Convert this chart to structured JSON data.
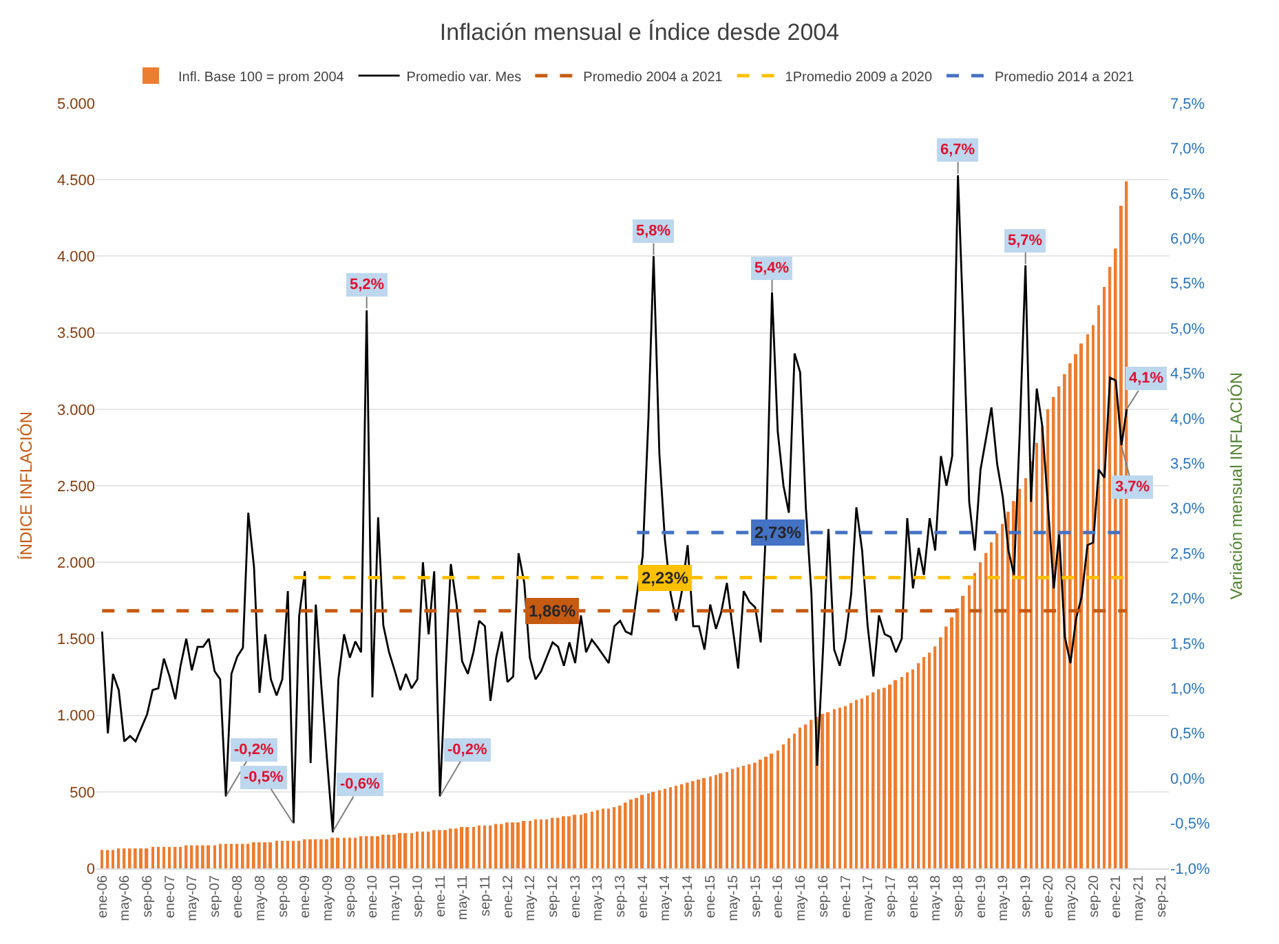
{
  "chart_data": {
    "type": "bar",
    "title": "Inflación mensual e Índice desde 2004",
    "ylabel": "ÍNDICE INFLACIÓN",
    "y2label": "Variación mensual INFLACIÓN",
    "x": [
      "2006-01",
      "2006-02",
      "2006-03",
      "2006-04",
      "2006-05",
      "2006-06",
      "2006-07",
      "2006-08",
      "2006-09",
      "2006-10",
      "2006-11",
      "2006-12",
      "2007-01",
      "2007-02",
      "2007-03",
      "2007-04",
      "2007-05",
      "2007-06",
      "2007-07",
      "2007-08",
      "2007-09",
      "2007-10",
      "2007-11",
      "2007-12",
      "2008-01",
      "2008-02",
      "2008-03",
      "2008-04",
      "2008-05",
      "2008-06",
      "2008-07",
      "2008-08",
      "2008-09",
      "2008-10",
      "2008-11",
      "2008-12",
      "2009-01",
      "2009-02",
      "2009-03",
      "2009-04",
      "2009-05",
      "2009-06",
      "2009-07",
      "2009-08",
      "2009-09",
      "2009-10",
      "2009-11",
      "2009-12",
      "2010-01",
      "2010-02",
      "2010-03",
      "2010-04",
      "2010-05",
      "2010-06",
      "2010-07",
      "2010-08",
      "2010-09",
      "2010-10",
      "2010-11",
      "2010-12",
      "2011-01",
      "2011-02",
      "2011-03",
      "2011-04",
      "2011-05",
      "2011-06",
      "2011-07",
      "2011-08",
      "2011-09",
      "2011-10",
      "2011-11",
      "2011-12",
      "2012-01",
      "2012-02",
      "2012-03",
      "2012-04",
      "2012-05",
      "2012-06",
      "2012-07",
      "2012-08",
      "2012-09",
      "2012-10",
      "2012-11",
      "2012-12",
      "2013-01",
      "2013-02",
      "2013-03",
      "2013-04",
      "2013-05",
      "2013-06",
      "2013-07",
      "2013-08",
      "2013-09",
      "2013-10",
      "2013-11",
      "2013-12",
      "2014-01",
      "2014-02",
      "2014-03",
      "2014-04",
      "2014-05",
      "2014-06",
      "2014-07",
      "2014-08",
      "2014-09",
      "2014-10",
      "2014-11",
      "2014-12",
      "2015-01",
      "2015-02",
      "2015-03",
      "2015-04",
      "2015-05",
      "2015-06",
      "2015-07",
      "2015-08",
      "2015-09",
      "2015-10",
      "2015-11",
      "2015-12",
      "2016-01",
      "2016-02",
      "2016-03",
      "2016-04",
      "2016-05",
      "2016-06",
      "2016-07",
      "2016-08",
      "2016-09",
      "2016-10",
      "2016-11",
      "2016-12",
      "2017-01",
      "2017-02",
      "2017-03",
      "2017-04",
      "2017-05",
      "2017-06",
      "2017-07",
      "2017-08",
      "2017-09",
      "2017-10",
      "2017-11",
      "2017-12",
      "2018-01",
      "2018-02",
      "2018-03",
      "2018-04",
      "2018-05",
      "2018-06",
      "2018-07",
      "2018-08",
      "2018-09",
      "2018-10",
      "2018-11",
      "2018-12",
      "2019-01",
      "2019-02",
      "2019-03",
      "2019-04",
      "2019-05",
      "2019-06",
      "2019-07",
      "2019-08",
      "2019-09",
      "2019-10",
      "2019-11",
      "2019-12",
      "2020-01",
      "2020-02",
      "2020-03",
      "2020-04",
      "2020-05",
      "2020-06",
      "2020-07",
      "2020-08",
      "2020-09",
      "2020-10",
      "2020-11",
      "2020-12",
      "2021-01",
      "2021-02",
      "2021-03"
    ],
    "series": [
      {
        "name": "Infl. Base 100 = prom 2004",
        "color": "#ed7d31",
        "values": [
          120,
          120,
          120,
          130,
          130,
          130,
          130,
          130,
          130,
          140,
          140,
          140,
          140,
          140,
          140,
          150,
          150,
          150,
          150,
          150,
          150,
          160,
          160,
          160,
          160,
          160,
          160,
          170,
          170,
          170,
          170,
          180,
          180,
          180,
          180,
          180,
          190,
          190,
          190,
          190,
          190,
          200,
          200,
          200,
          200,
          200,
          210,
          210,
          210,
          210,
          220,
          220,
          220,
          230,
          230,
          230,
          240,
          240,
          240,
          250,
          250,
          250,
          260,
          260,
          270,
          270,
          270,
          280,
          280,
          280,
          290,
          290,
          300,
          300,
          300,
          310,
          310,
          320,
          320,
          320,
          330,
          330,
          340,
          340,
          350,
          350,
          360,
          370,
          380,
          390,
          390,
          400,
          410,
          430,
          450,
          460,
          480,
          490,
          500,
          510,
          520,
          530,
          540,
          550,
          560,
          570,
          580,
          590,
          600,
          610,
          620,
          630,
          650,
          660,
          670,
          680,
          690,
          710,
          730,
          750,
          770,
          810,
          850,
          880,
          920,
          940,
          970,
          990,
          1010,
          1020,
          1040,
          1050,
          1060,
          1080,
          1100,
          1110,
          1130,
          1150,
          1170,
          1180,
          1200,
          1230,
          1250,
          1280,
          1300,
          1340,
          1380,
          1410,
          1450,
          1510,
          1580,
          1640,
          1700,
          1780,
          1850,
          1930,
          2000,
          2060,
          2130,
          2190,
          2250,
          2330,
          2400,
          2480,
          2550,
          2660,
          2780,
          2890,
          3000,
          3080,
          3150,
          3230,
          3300,
          3360,
          3430,
          3490,
          3550,
          3680,
          3800,
          3930,
          4050,
          4330,
          4490
        ]
      },
      {
        "name": "Promedio var. Mes",
        "type": "line",
        "axis": "y2",
        "color": "#000000",
        "values": [
          1.63,
          0.5,
          1.16,
          0.98,
          0.41,
          0.47,
          0.41,
          0.56,
          0.71,
          0.98,
          1.0,
          1.33,
          1.13,
          0.88,
          1.25,
          1.55,
          1.2,
          1.46,
          1.46,
          1.55,
          1.19,
          1.1,
          -0.2,
          1.16,
          1.35,
          1.45,
          2.95,
          2.35,
          0.95,
          1.6,
          1.1,
          0.92,
          1.1,
          2.08,
          -0.5,
          1.8,
          2.3,
          0.17,
          1.93,
          1.0,
          0.2,
          -0.6,
          1.1,
          1.6,
          1.34,
          1.52,
          1.4,
          5.2,
          0.9,
          2.9,
          1.7,
          1.4,
          1.2,
          0.98,
          1.16,
          1.0,
          1.1,
          2.4,
          1.6,
          2.3,
          -0.2,
          1.2,
          2.38,
          1.93,
          1.3,
          1.16,
          1.4,
          1.75,
          1.69,
          0.86,
          1.34,
          1.63,
          1.07,
          1.13,
          2.5,
          2.17,
          1.34,
          1.1,
          1.19,
          1.35,
          1.51,
          1.46,
          1.25,
          1.51,
          1.28,
          1.81,
          1.4,
          1.54,
          1.46,
          1.37,
          1.28,
          1.69,
          1.75,
          1.63,
          1.6,
          2.05,
          2.47,
          4.0,
          5.8,
          3.61,
          2.65,
          2.05,
          1.75,
          2.08,
          2.59,
          1.69,
          1.69,
          1.43,
          1.93,
          1.66,
          1.84,
          2.17,
          1.69,
          1.22,
          2.08,
          1.96,
          1.9,
          1.51,
          2.89,
          5.4,
          3.85,
          3.25,
          2.95,
          4.72,
          4.51,
          3.0,
          2.05,
          0.14,
          1.4,
          2.77,
          1.43,
          1.25,
          1.55,
          2.05,
          3.01,
          2.53,
          1.69,
          1.13,
          1.81,
          1.6,
          1.57,
          1.4,
          1.55,
          2.89,
          2.11,
          2.56,
          2.26,
          2.89,
          2.53,
          3.58,
          3.25,
          3.58,
          6.7,
          5.0,
          3.07,
          2.53,
          3.43,
          3.79,
          4.12,
          3.49,
          3.13,
          2.53,
          2.26,
          3.85,
          5.7,
          3.07,
          4.33,
          3.91,
          3.01,
          2.11,
          2.71,
          1.57,
          1.28,
          1.78,
          2.02,
          2.59,
          2.62,
          3.43,
          3.34,
          4.45,
          4.42,
          3.7,
          4.1
        ]
      },
      {
        "name": "Promedio 2004 a 2021",
        "type": "line",
        "axis": "y2",
        "color": "#c55a11",
        "line_style": "dashed",
        "x": [
          "2006-01",
          "2021-03"
        ],
        "values": [
          1.86,
          1.86
        ]
      },
      {
        "name": "1Promedio 2009 a 2020",
        "type": "line",
        "axis": "y2",
        "color": "#ffc000",
        "line_style": "dashed",
        "x": [
          "2008-11",
          "2021-03"
        ],
        "values": [
          2.23,
          2.23
        ]
      },
      {
        "name": "Promedio 2014 a 2021",
        "type": "line",
        "axis": "y2",
        "color": "#4472c4",
        "line_style": "dashed",
        "x": [
          "2013-12",
          "2021-03"
        ],
        "values": [
          2.73,
          2.73
        ]
      }
    ],
    "annotations": [
      {
        "text": "-0,2%",
        "x": "2007-11",
        "y": 470
      },
      {
        "text": "-0,5%",
        "x": "2008-11",
        "y": 290
      },
      {
        "text": "-0,6%",
        "x": "2009-06",
        "y": 240
      },
      {
        "text": "5,2%",
        "x": "2009-12",
        "y": 3650
      },
      {
        "text": "-0,2%",
        "x": "2011-01",
        "y": 470
      },
      {
        "text": "5,8%",
        "x": "2014-03",
        "y": 4000
      },
      {
        "text": "5,4%",
        "x": "2015-12",
        "y": 3760
      },
      {
        "text": "6,7%",
        "x": "2018-09",
        "y": 4530
      },
      {
        "text": "5,7%",
        "x": "2019-09",
        "y": 3940
      },
      {
        "text": "3,7%",
        "x": "2021-02",
        "y": 2760
      },
      {
        "text": "4,1%",
        "x": "2021-03",
        "y": 3000
      },
      {
        "text": "1,86%",
        "x": "2012-09",
        "y": 1680
      },
      {
        "text": "2,23%",
        "x": "2014-05",
        "y": 1900
      },
      {
        "text": "2,73%",
        "x": "2016-01",
        "y": 2190
      }
    ],
    "xlim": [
      "2005-12-01",
      "2021-10-15"
    ],
    "xticks": [
      {
        "value": "2006-01",
        "label": "ene-06"
      },
      {
        "value": "2006-05",
        "label": "may-06"
      },
      {
        "value": "2006-09",
        "label": "sep-06"
      },
      {
        "value": "2007-01",
        "label": "ene-07"
      },
      {
        "value": "2007-05",
        "label": "may-07"
      },
      {
        "value": "2007-09",
        "label": "sep-07"
      },
      {
        "value": "2008-01",
        "label": "ene-08"
      },
      {
        "value": "2008-05",
        "label": "may-08"
      },
      {
        "value": "2008-09",
        "label": "sep-08"
      },
      {
        "value": "2009-01",
        "label": "ene-09"
      },
      {
        "value": "2009-05",
        "label": "may-09"
      },
      {
        "value": "2009-09",
        "label": "sep-09"
      },
      {
        "value": "2010-01",
        "label": "ene-10"
      },
      {
        "value": "2010-05",
        "label": "may-10"
      },
      {
        "value": "2010-09",
        "label": "sep-10"
      },
      {
        "value": "2011-01",
        "label": "ene-11"
      },
      {
        "value": "2011-05",
        "label": "may-11"
      },
      {
        "value": "2011-09",
        "label": "sep-11"
      },
      {
        "value": "2012-01",
        "label": "ene-12"
      },
      {
        "value": "2012-05",
        "label": "may-12"
      },
      {
        "value": "2012-09",
        "label": "sep-12"
      },
      {
        "value": "2013-01",
        "label": "ene-13"
      },
      {
        "value": "2013-05",
        "label": "may-13"
      },
      {
        "value": "2013-09",
        "label": "sep-13"
      },
      {
        "value": "2014-01",
        "label": "ene-14"
      },
      {
        "value": "2014-05",
        "label": "may-14"
      },
      {
        "value": "2014-09",
        "label": "sep-14"
      },
      {
        "value": "2015-01",
        "label": "ene-15"
      },
      {
        "value": "2015-05",
        "label": "may-15"
      },
      {
        "value": "2015-09",
        "label": "sep-15"
      },
      {
        "value": "2016-01",
        "label": "ene-16"
      },
      {
        "value": "2016-05",
        "label": "may-16"
      },
      {
        "value": "2016-09",
        "label": "sep-16"
      },
      {
        "value": "2017-01",
        "label": "ene-17"
      },
      {
        "value": "2017-05",
        "label": "may-17"
      },
      {
        "value": "2017-09",
        "label": "sep-17"
      },
      {
        "value": "2018-01",
        "label": "ene-18"
      },
      {
        "value": "2018-05",
        "label": "may-18"
      },
      {
        "value": "2018-09",
        "label": "sep-18"
      },
      {
        "value": "2019-01",
        "label": "ene-19"
      },
      {
        "value": "2019-05",
        "label": "may-19"
      },
      {
        "value": "2019-09",
        "label": "sep-19"
      },
      {
        "value": "2020-01",
        "label": "ene-20"
      },
      {
        "value": "2020-05",
        "label": "may-20"
      },
      {
        "value": "2020-09",
        "label": "sep-20"
      },
      {
        "value": "2021-01",
        "label": "ene-21"
      },
      {
        "value": "2021-05",
        "label": "may-21"
      },
      {
        "value": "2021-09",
        "label": "sep-21"
      }
    ],
    "ylim": [
      0,
      5000
    ],
    "yticks": [
      0,
      {
        "value": 500,
        "label": "500"
      },
      {
        "value": 1000,
        "label": "1.000"
      },
      {
        "value": 1500,
        "label": "1.500"
      },
      {
        "value": 2000,
        "label": "2.000"
      },
      {
        "value": 2500,
        "label": "2.500"
      },
      {
        "value": 3000,
        "label": "3.000"
      },
      {
        "value": 3500,
        "label": "3.500"
      },
      {
        "value": 4000,
        "label": "4.000"
      },
      {
        "value": 4500,
        "label": "4.500"
      },
      {
        "value": 5000,
        "label": "5.000"
      }
    ],
    "y2lim": [
      -1.0,
      7.5
    ],
    "y2ticks": [
      {
        "value": -1.0,
        "label": "-1,0%"
      },
      {
        "value": -0.5,
        "label": "-0,5%"
      },
      {
        "value": 0.0,
        "label": "0,0%"
      },
      {
        "value": 0.5,
        "label": "0,5%"
      },
      {
        "value": 1.0,
        "label": "1,0%"
      },
      {
        "value": 1.5,
        "label": "1,5%"
      },
      {
        "value": 2.0,
        "label": "2,0%"
      },
      {
        "value": 2.5,
        "label": "2,5%"
      },
      {
        "value": 3.0,
        "label": "3,0%"
      },
      {
        "value": 3.5,
        "label": "3,5%"
      },
      {
        "value": 4.0,
        "label": "4,0%"
      },
      {
        "value": 4.5,
        "label": "4,5%"
      },
      {
        "value": 5.0,
        "label": "5,0%"
      },
      {
        "value": 5.5,
        "label": "5,5%"
      },
      {
        "value": 6.0,
        "label": "6,0%"
      },
      {
        "value": 6.5,
        "label": "6,5%"
      },
      {
        "value": 7.0,
        "label": "7,0%"
      },
      {
        "value": 7.5,
        "label": "7,5%"
      }
    ],
    "grid": "y",
    "legend": "top",
    "marker": "none"
  }
}
